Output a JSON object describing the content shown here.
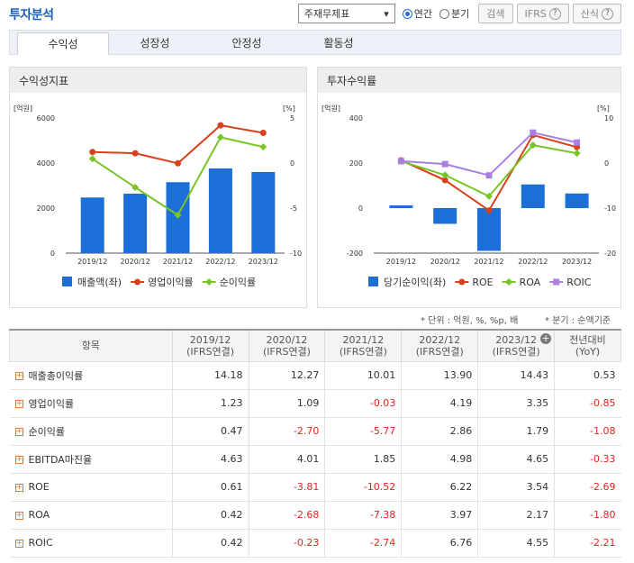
{
  "title": "투자분석",
  "controls": {
    "select_value": "주재무제표",
    "radio_annual": "연간",
    "radio_quarter": "분기",
    "search_label": "검색",
    "ifrs_label": "IFRS",
    "formula_label": "산식"
  },
  "tabs": [
    "수익성",
    "성장성",
    "안정성",
    "활동성"
  ],
  "left_panel_title": "수익성지표",
  "right_panel_title": "투자수익률",
  "note_unit": "* 단위 : 억원, %, %p, 배",
  "note_quarter": "* 분기 : 순액기준",
  "chart_data": [
    {
      "type": "bar",
      "categories": [
        "2019/12",
        "2020/12",
        "2021/12",
        "2022/12",
        "2023/12"
      ],
      "left_unit": "[억원]",
      "right_unit": "[%]",
      "ylim_left": [
        0,
        6000
      ],
      "left_ticks": [
        "6000",
        "4000",
        "2000",
        "0"
      ],
      "ylim_right": [
        -10,
        5
      ],
      "right_ticks": [
        "5",
        "0",
        "-5",
        "-10"
      ],
      "series": [
        {
          "name": "매출액(좌)",
          "kind": "bar",
          "axis": "left",
          "color": "#1d6fd8",
          "values": [
            2470,
            2640,
            3150,
            3760,
            3600
          ]
        },
        {
          "name": "영업이익률",
          "kind": "line",
          "axis": "right",
          "color": "#d9401c",
          "values": [
            1.23,
            1.09,
            -0.03,
            4.19,
            3.35
          ]
        },
        {
          "name": "순이익률",
          "kind": "line",
          "axis": "right",
          "color": "#7ac526",
          "values": [
            0.47,
            -2.7,
            -5.77,
            2.86,
            1.79
          ]
        }
      ]
    },
    {
      "type": "bar",
      "categories": [
        "2019/12",
        "2020/12",
        "2021/12",
        "2022/12",
        "2023/12"
      ],
      "left_unit": "[억원]",
      "right_unit": "[%]",
      "ylim_left": [
        -200,
        400
      ],
      "left_ticks": [
        "400",
        "200",
        "0",
        "-200"
      ],
      "ylim_right": [
        -20,
        10
      ],
      "right_ticks": [
        "10",
        "0",
        "-10",
        "-20"
      ],
      "series": [
        {
          "name": "당기순이익(좌)",
          "kind": "bar",
          "axis": "left",
          "color": "#1d6fd8",
          "values": [
            12,
            -70,
            -190,
            105,
            65
          ]
        },
        {
          "name": "ROE",
          "kind": "line",
          "axis": "right",
          "color": "#d9401c",
          "values": [
            0.61,
            -3.81,
            -10.52,
            6.22,
            3.54
          ]
        },
        {
          "name": "ROA",
          "kind": "line",
          "axis": "right",
          "color": "#7ac526",
          "values": [
            0.42,
            -2.68,
            -7.38,
            3.97,
            2.17
          ]
        },
        {
          "name": "ROIC",
          "kind": "line",
          "axis": "right",
          "color": "#a97fe0",
          "values": [
            0.42,
            -0.23,
            -2.74,
            6.76,
            4.55
          ]
        }
      ]
    }
  ],
  "table": {
    "head_item": "항목",
    "head_cols": [
      {
        "top": "2019/12",
        "bottom": "(IFRS연결)"
      },
      {
        "top": "2020/12",
        "bottom": "(IFRS연결)"
      },
      {
        "top": "2021/12",
        "bottom": "(IFRS연결)"
      },
      {
        "top": "2022/12",
        "bottom": "(IFRS연결)"
      },
      {
        "top": "2023/12",
        "bottom": "(IFRS연결)"
      }
    ],
    "head_yoy_top": "전년대비",
    "head_yoy_bottom": "(YoY)",
    "rows": [
      {
        "label": "매출총이익률",
        "values": [
          "14.18",
          "12.27",
          "10.01",
          "13.90",
          "14.43"
        ],
        "yoy": "0.53"
      },
      {
        "label": "영업이익률",
        "values": [
          "1.23",
          "1.09",
          "-0.03",
          "4.19",
          "3.35"
        ],
        "yoy": "-0.85"
      },
      {
        "label": "순이익률",
        "values": [
          "0.47",
          "-2.70",
          "-5.77",
          "2.86",
          "1.79"
        ],
        "yoy": "-1.08"
      },
      {
        "label": "EBITDA마진율",
        "values": [
          "4.63",
          "4.01",
          "1.85",
          "4.98",
          "4.65"
        ],
        "yoy": "-0.33"
      },
      {
        "label": "ROE",
        "values": [
          "0.61",
          "-3.81",
          "-10.52",
          "6.22",
          "3.54"
        ],
        "yoy": "-2.69"
      },
      {
        "label": "ROA",
        "values": [
          "0.42",
          "-2.68",
          "-7.38",
          "3.97",
          "2.17"
        ],
        "yoy": "-1.80"
      },
      {
        "label": "ROIC",
        "values": [
          "0.42",
          "-0.23",
          "-2.74",
          "6.76",
          "4.55"
        ],
        "yoy": "-2.21"
      }
    ]
  }
}
